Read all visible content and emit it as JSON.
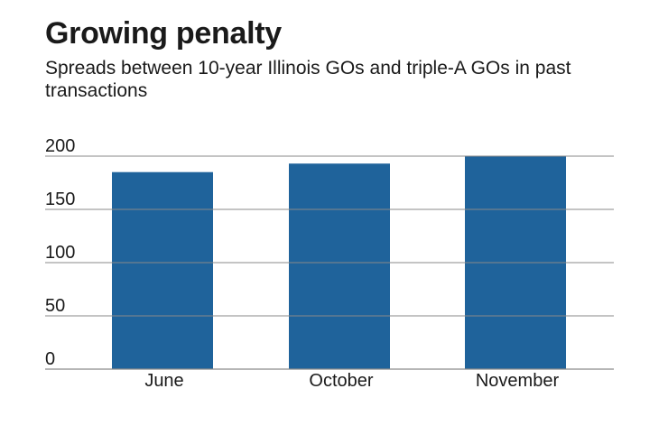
{
  "chart_data": {
    "type": "bar",
    "title": "Growing penalty",
    "subtitle": "Spreads between 10-year Illinois GOs and triple-A GOs in past transactions",
    "categories": [
      "June",
      "October",
      "November"
    ],
    "values": [
      185,
      193,
      200
    ],
    "ylim": [
      0,
      200
    ],
    "yticks": [
      0,
      50,
      100,
      150,
      200
    ],
    "grid": true,
    "legend": "none",
    "bar_color": "#1f639b",
    "grid_color": "#8a8a8a"
  }
}
